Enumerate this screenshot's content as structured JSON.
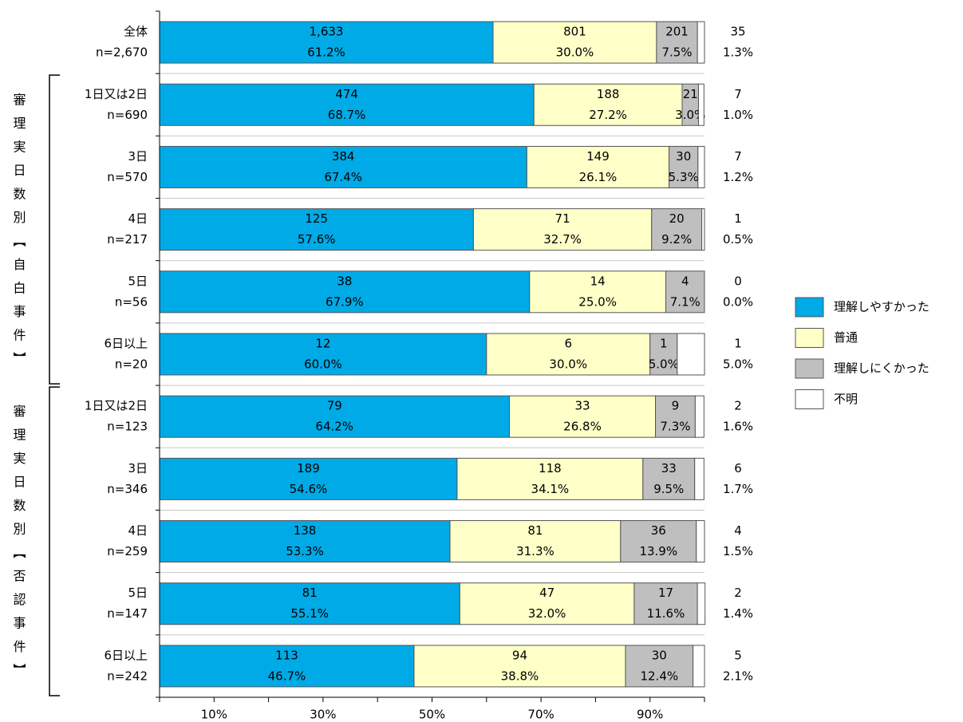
{
  "chart_data": {
    "type": "stacked-bar-horizontal",
    "categories": [
      "全体",
      "1日又は2日",
      "3日",
      "4日",
      "5日",
      "6日以上",
      "1日又は2日",
      "3日",
      "4日",
      "5日",
      "6日以上"
    ],
    "n_labels": [
      "n=2,670",
      "n=690",
      "n=570",
      "n=217",
      "n=56",
      "n=20",
      "n=123",
      "n=346",
      "n=259",
      "n=147",
      "n=242"
    ],
    "groups": [
      "審理実日数別【自白事件】",
      "審理実日数別【否認事件】"
    ],
    "series": [
      {
        "name": "理解しやすかった",
        "color": "#00aae6",
        "values": [
          61.2,
          68.7,
          67.4,
          57.6,
          67.9,
          60,
          64.2,
          54.6,
          53.3,
          55.1,
          46.7
        ],
        "value_labels": [
          "61.2%",
          "68.7%",
          "67.4%",
          "57.6%",
          "67.9%",
          "60.0%",
          "64.2%",
          "54.6%",
          "53.3%",
          "55.1%",
          "46.7%"
        ],
        "count_labels": [
          "1,633",
          "474",
          "384",
          "125",
          "38",
          "12",
          "79",
          "189",
          "138",
          "81",
          "113"
        ]
      },
      {
        "name": "普通",
        "color": "#ffffc8",
        "values": [
          30,
          27.2,
          26.1,
          32.7,
          25,
          30,
          26.8,
          34.1,
          31.3,
          32,
          38.8
        ],
        "value_labels": [
          "30.0%",
          "27.2%",
          "26.1%",
          "32.7%",
          "25.0%",
          "30.0%",
          "26.8%",
          "34.1%",
          "31.3%",
          "32.0%",
          "38.8%"
        ],
        "count_labels": [
          "801",
          "188",
          "149",
          "71",
          "14",
          "6",
          "33",
          "118",
          "81",
          "47",
          "94"
        ]
      },
      {
        "name": "理解しにくかった",
        "color": "#bfbfbf",
        "values": [
          7.5,
          3,
          5.3,
          9.2,
          7.1,
          5,
          7.3,
          9.5,
          13.9,
          11.6,
          12.4
        ],
        "value_labels": [
          "7.5%",
          "3.0%",
          "5.3%",
          "9.2%",
          "7.1%",
          "5.0%",
          "7.3%",
          "9.5%",
          "13.9%",
          "11.6%",
          "12.4%"
        ],
        "count_labels": [
          "201",
          "21",
          "30",
          "20",
          "4",
          "1",
          "9",
          "33",
          "36",
          "17",
          "30"
        ]
      },
      {
        "name": "不明",
        "color": "#ffffff",
        "values": [
          1.3,
          1,
          1.2,
          0.5,
          0,
          5,
          1.6,
          1.7,
          1.5,
          1.4,
          2.1
        ],
        "value_labels": [
          "1.3%",
          "1.0%",
          "1.2%",
          "0.5%",
          "0.0%",
          "5.0%",
          "1.6%",
          "1.7%",
          "1.5%",
          "1.4%",
          "2.1%"
        ],
        "count_labels": [
          "35",
          "7",
          "7",
          "1",
          "0",
          "1",
          "2",
          "6",
          "4",
          "2",
          "5"
        ]
      }
    ],
    "xlim": [
      0,
      100
    ],
    "xticks": [
      {
        "value": 10,
        "label": "10%"
      },
      {
        "value": 30,
        "label": "30%"
      },
      {
        "value": 50,
        "label": "50%"
      },
      {
        "value": 70,
        "label": "70%"
      },
      {
        "value": 90,
        "label": "90%"
      }
    ],
    "xminor": [
      0,
      20,
      40,
      60,
      80,
      100
    ],
    "legend": "right"
  }
}
